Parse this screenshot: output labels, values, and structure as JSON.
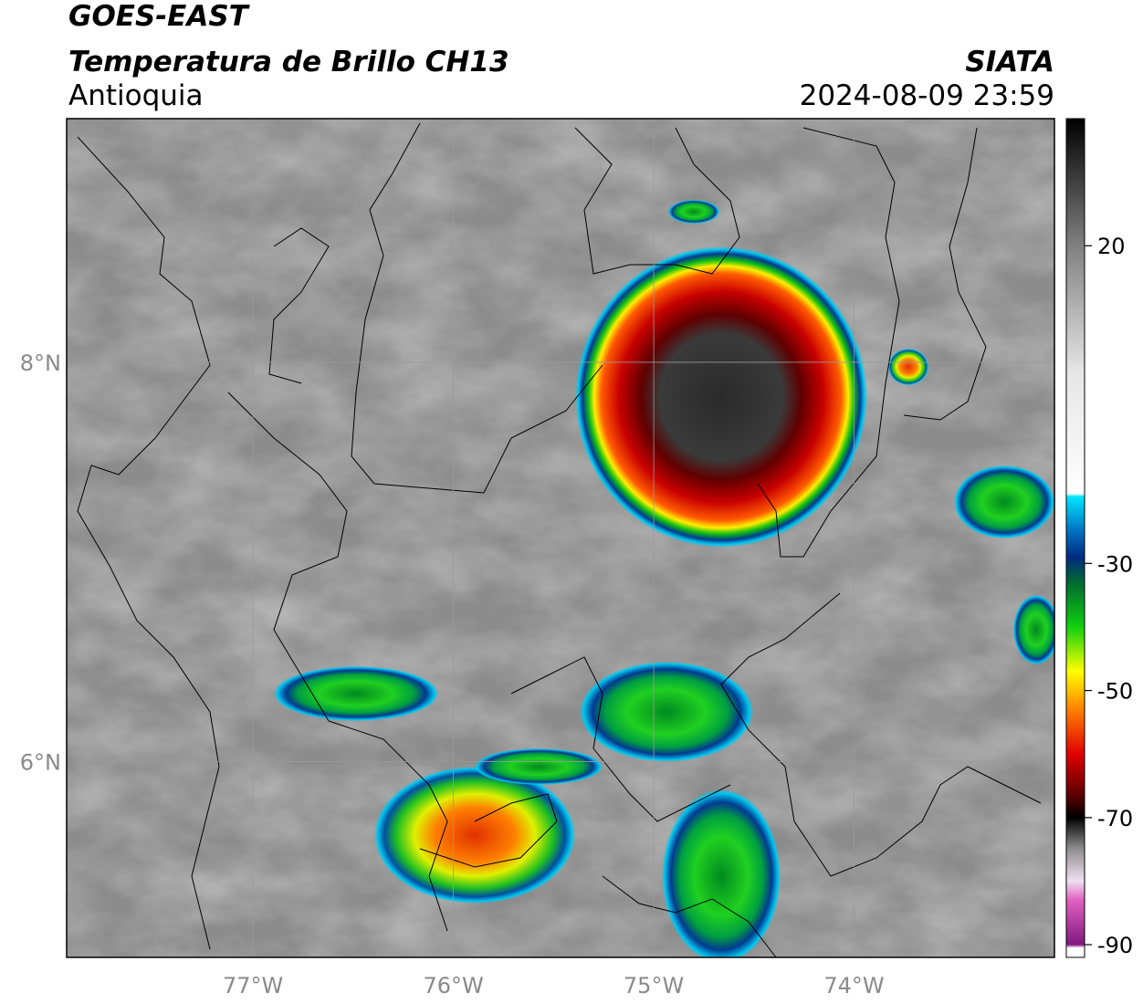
{
  "header": {
    "satellite": "GOES-EAST",
    "product": "Temperatura de Brillo CH13",
    "agency": "SIATA",
    "region": "Antioquia",
    "datetime": "2024-08-09 23:59"
  },
  "map": {
    "xlim": [
      -77.93,
      -73.0
    ],
    "ylim": [
      5.02,
      9.22
    ],
    "xticks": [
      {
        "value": -77,
        "label": "77°W"
      },
      {
        "value": -76,
        "label": "76°W"
      },
      {
        "value": -75,
        "label": "75°W"
      },
      {
        "value": -74,
        "label": "74°W"
      }
    ],
    "yticks": [
      {
        "value": 8,
        "label": "8°N"
      },
      {
        "value": 6,
        "label": "6°N"
      }
    ],
    "grid": true
  },
  "colorbar": {
    "clim": [
      -92,
      40
    ],
    "ticks": [
      20,
      -30,
      -50,
      -70,
      -90
    ],
    "stops": [
      {
        "value": 40,
        "color": "#000000"
      },
      {
        "value": 20,
        "color": "#808080"
      },
      {
        "value": 0,
        "color": "#e6e6e6"
      },
      {
        "value": -19,
        "color": "#ffffff"
      },
      {
        "value": -19.5,
        "color": "#00e5ff"
      },
      {
        "value": -25,
        "color": "#0070c0"
      },
      {
        "value": -29,
        "color": "#002a80"
      },
      {
        "value": -33,
        "color": "#006a30"
      },
      {
        "value": -40,
        "color": "#10d010"
      },
      {
        "value": -47,
        "color": "#ffff00"
      },
      {
        "value": -53,
        "color": "#ff8000"
      },
      {
        "value": -60,
        "color": "#e00000"
      },
      {
        "value": -67,
        "color": "#500000"
      },
      {
        "value": -70,
        "color": "#000000"
      },
      {
        "value": -75,
        "color": "#909090"
      },
      {
        "value": -80,
        "color": "#f0e0f0"
      },
      {
        "value": -83,
        "color": "#e060c0"
      },
      {
        "value": -90,
        "color": "#801880"
      },
      {
        "value": -90.5,
        "color": "#ffffff"
      }
    ]
  }
}
